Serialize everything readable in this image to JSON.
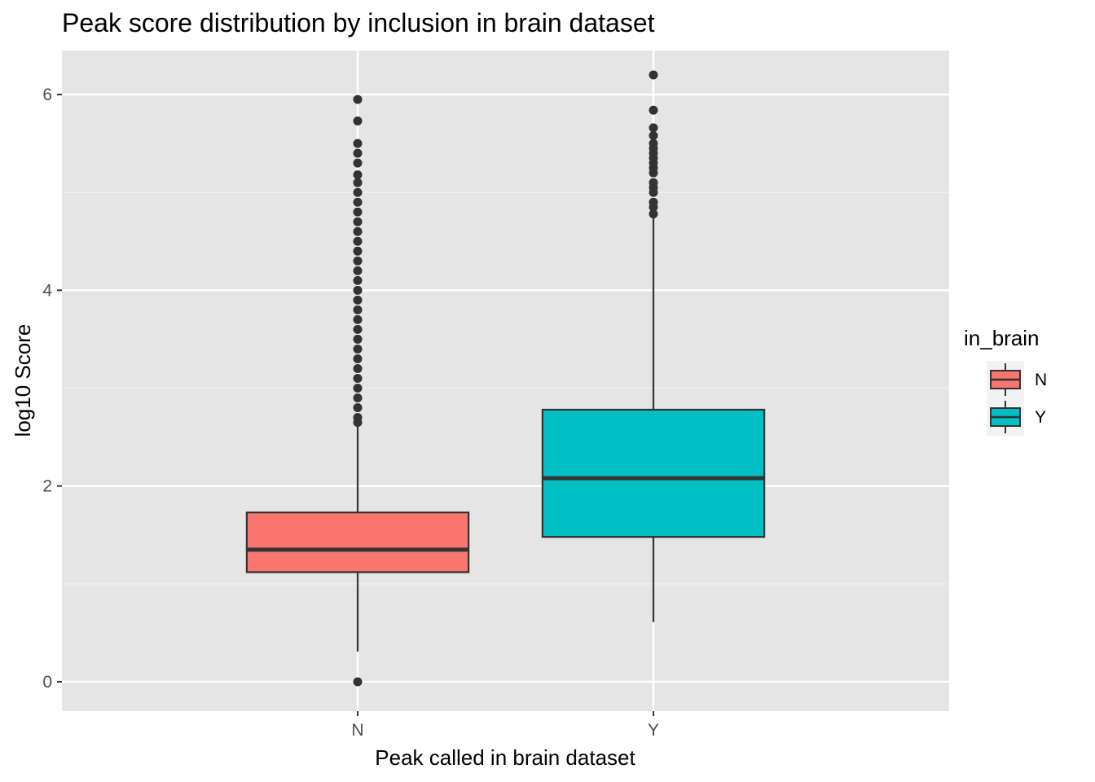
{
  "chart_data": {
    "type": "boxplot",
    "title": "Peak score distribution by inclusion in brain dataset",
    "xlabel": "Peak called in brain dataset",
    "ylabel": "log10 Score",
    "categories": [
      "N",
      "Y"
    ],
    "yticks": [
      0,
      2,
      4,
      6
    ],
    "ylim": [
      -0.3,
      6.45
    ],
    "grid": true,
    "legend": {
      "title": "in_brain",
      "placement": "right",
      "entries": [
        {
          "label": "N",
          "color": "#F8766D"
        },
        {
          "label": "Y",
          "color": "#00BFC4"
        }
      ]
    },
    "boxes": [
      {
        "category": "N",
        "color": "#F8766D",
        "q1": 1.12,
        "median": 1.35,
        "q3": 1.73,
        "whisker_low": 0.31,
        "whisker_high": 2.63,
        "outliers": [
          0.0,
          2.65,
          2.7,
          2.8,
          2.9,
          3.0,
          3.1,
          3.2,
          3.3,
          3.4,
          3.5,
          3.6,
          3.7,
          3.8,
          3.9,
          4.0,
          4.1,
          4.2,
          4.3,
          4.4,
          4.5,
          4.6,
          4.7,
          4.8,
          4.9,
          5.0,
          5.1,
          5.18,
          5.3,
          5.4,
          5.5,
          5.73,
          5.95
        ]
      },
      {
        "category": "Y",
        "color": "#00BFC4",
        "q1": 1.48,
        "median": 2.08,
        "q3": 2.78,
        "whisker_low": 0.61,
        "whisker_high": 4.74,
        "outliers": [
          4.78,
          4.85,
          4.9,
          5.0,
          5.05,
          5.1,
          5.2,
          5.25,
          5.3,
          5.35,
          5.4,
          5.45,
          5.5,
          5.58,
          5.66,
          5.84,
          6.2
        ]
      }
    ]
  }
}
